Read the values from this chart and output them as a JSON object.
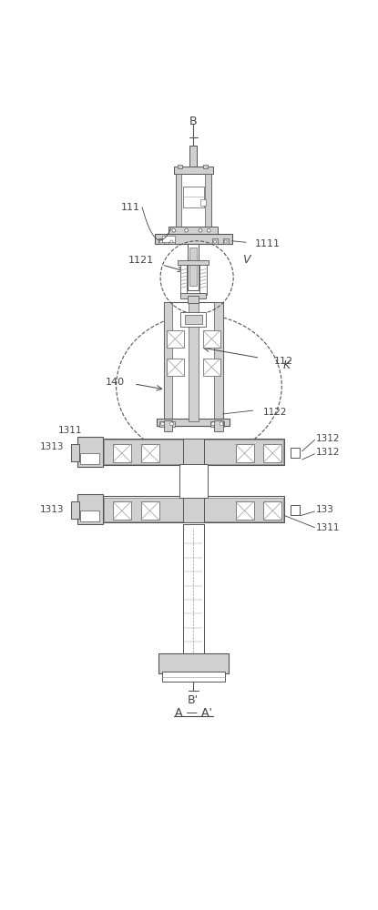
{
  "bg_color": "#ffffff",
  "line_color": "#555555",
  "light_gray": "#d0d0d0",
  "mid_gray": "#999999",
  "dark_gray": "#444444",
  "fig_width": 4.15,
  "fig_height": 10.0,
  "labels": {
    "B_top": "B",
    "B_bottom": "B'",
    "A_bottom": "A — A'",
    "V": "V",
    "K": "K",
    "111": "111",
    "1111": "1111",
    "1121": "1121",
    "112": "112",
    "140": "140",
    "1122": "1122",
    "1311_left": "1311",
    "1311_right": "1311",
    "1312_top": "1312",
    "1312_bot": "1312",
    "1313_top": "1313",
    "1313_bot": "1313",
    "133": "133"
  }
}
